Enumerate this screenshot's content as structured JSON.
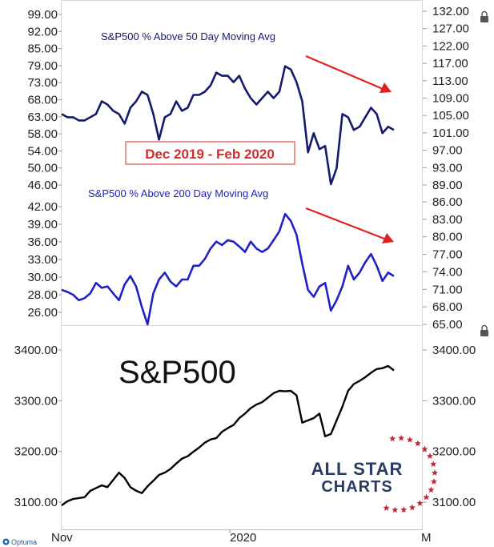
{
  "chart_data": [
    {
      "type": "line",
      "title": "S&P500 % Above 50 Day Moving Avg",
      "annotation": "Dec 2019 - Feb 2020",
      "left_ticks": [
        "99.00",
        "92.00",
        "85.00",
        "79.00",
        "73.00",
        "68.00",
        "63.00",
        "58.00",
        "54.00",
        "50.00",
        "46.00"
      ],
      "right_ticks": [
        "132.00",
        "127.00",
        "122.00",
        "117.00",
        "113.00",
        "109.00",
        "105.00",
        "101.00",
        "97.00",
        "93.00",
        "89.00"
      ],
      "ylim": [
        45,
        100
      ],
      "color": "#141a6e",
      "trend_arrow_color": "#e02020",
      "values": [
        68,
        67,
        67,
        66,
        66,
        67,
        68,
        72,
        71,
        69,
        68,
        65,
        70,
        72,
        75,
        74,
        68,
        60,
        67,
        68,
        72,
        69,
        70,
        74,
        74,
        75,
        77,
        81,
        80,
        80,
        78,
        80,
        76,
        73,
        71,
        73,
        75,
        73,
        75,
        83,
        82,
        78,
        72,
        56,
        62,
        57,
        58,
        46,
        51,
        68,
        67,
        63,
        64,
        67,
        70,
        68,
        62,
        64,
        63
      ]
    },
    {
      "type": "line",
      "title": "S&P500 % Above 200 Day Moving Avg",
      "left_ticks": [
        "42.00",
        "39.00",
        "36.00",
        "33.00",
        "30.00",
        "28.00",
        "26.00"
      ],
      "right_ticks": [
        "86.00",
        "83.00",
        "80.00",
        "77.00",
        "74.00",
        "71.00",
        "68.00",
        "65.00"
      ],
      "ylim": [
        25,
        43
      ],
      "color": "#2020c8",
      "trend_arrow_color": "#e02020",
      "values": [
        30,
        29.7,
        29.3,
        28.5,
        28.8,
        29.5,
        31,
        30.3,
        30.5,
        29.5,
        28.5,
        30.8,
        32,
        30.5,
        27.5,
        25,
        29.5,
        31.5,
        32.5,
        31.2,
        30.5,
        31.5,
        31.5,
        33.5,
        33.5,
        34.5,
        36,
        37,
        36.5,
        37.2,
        37,
        36.3,
        35.5,
        37,
        36,
        35.5,
        36,
        37.2,
        38.5,
        41,
        40,
        38,
        33.8,
        30,
        29,
        30.5,
        31,
        27,
        28.5,
        30.5,
        33.5,
        31.5,
        32.5,
        34,
        35.2,
        33.5,
        31.3,
        32.5,
        32
      ]
    },
    {
      "type": "line",
      "title": "S&P500",
      "left_ticks": [
        "3400.00",
        "3300.00",
        "3200.00",
        "3100.00"
      ],
      "right_ticks": [
        "3400.00",
        "3300.00",
        "3200.00",
        "3100.00"
      ],
      "ylim": [
        3085,
        3420
      ],
      "color": "#000000",
      "x_tick_labels": [
        "Nov",
        "2020",
        "M"
      ],
      "values": [
        3078,
        3087,
        3092,
        3094,
        3096,
        3110,
        3116,
        3122,
        3118,
        3134,
        3150,
        3138,
        3118,
        3110,
        3105,
        3120,
        3132,
        3145,
        3150,
        3158,
        3170,
        3181,
        3186,
        3196,
        3205,
        3216,
        3223,
        3226,
        3240,
        3248,
        3255,
        3270,
        3280,
        3292,
        3300,
        3305,
        3315,
        3325,
        3330,
        3329,
        3330,
        3320,
        3260,
        3265,
        3270,
        3280,
        3230,
        3235,
        3265,
        3295,
        3330,
        3345,
        3352,
        3360,
        3370,
        3378,
        3380,
        3385,
        3375
      ]
    }
  ],
  "logo": {
    "line1": "ALL STAR",
    "line2": "CHARTS"
  },
  "footer": {
    "brand": "Optuma"
  },
  "icons": [
    "lock-icon",
    "lock-icon",
    "optuma-logo-icon",
    "stars-ring-icon"
  ]
}
